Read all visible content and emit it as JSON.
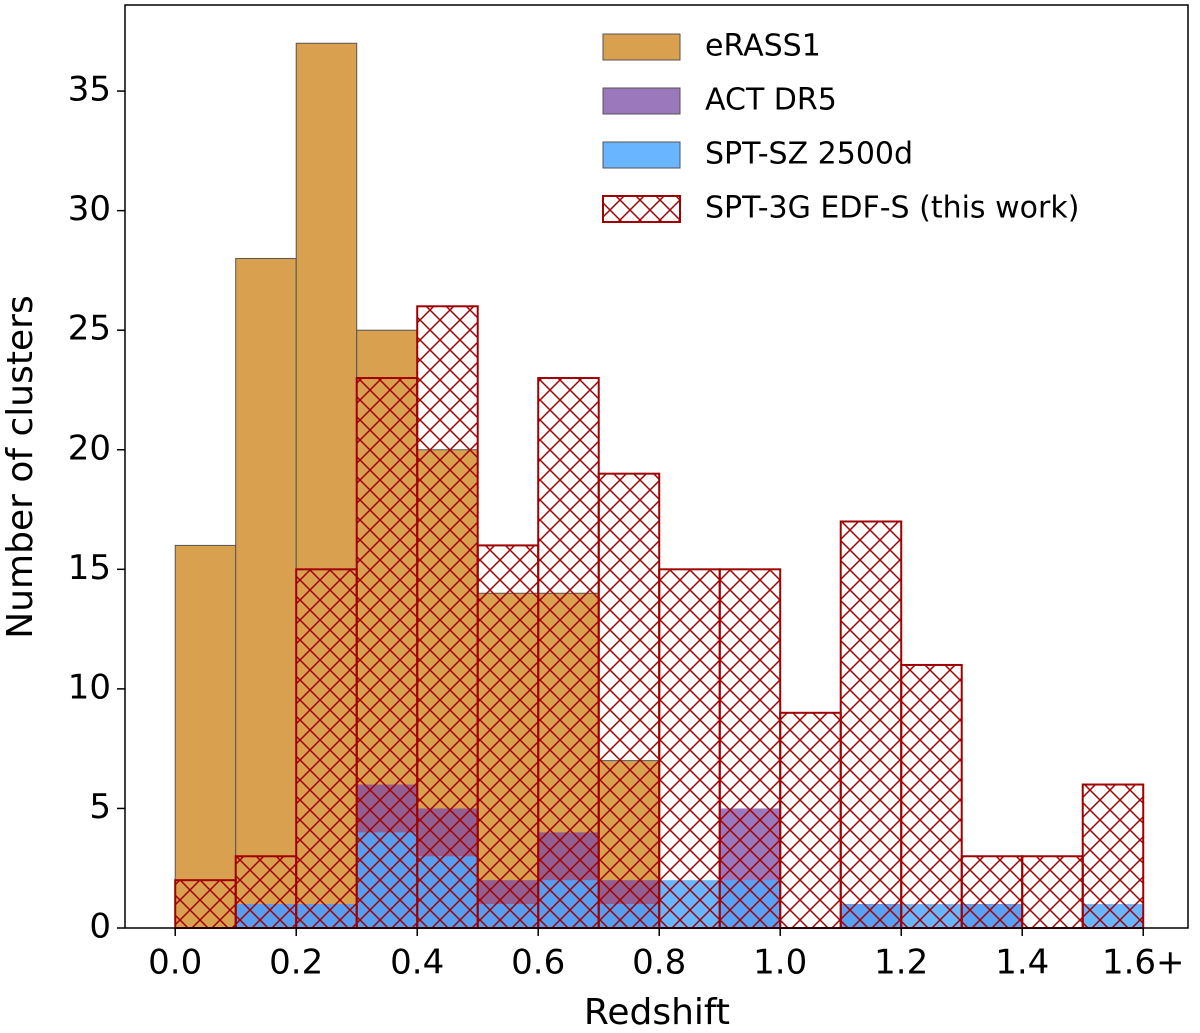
{
  "chart_data": {
    "type": "histogram",
    "xlabel": "Redshift",
    "ylabel": "Number of clusters",
    "bins": [
      0.0,
      0.1,
      0.2,
      0.3,
      0.4,
      0.5,
      0.6,
      0.7,
      0.8,
      0.9,
      1.0,
      1.1,
      1.2,
      1.3,
      1.4,
      1.5,
      1.6
    ],
    "series": [
      {
        "name": "eRASS1",
        "color": "#d9a050",
        "alpha": 1,
        "values": [
          16,
          28,
          37,
          25,
          20,
          14,
          14,
          7,
          0,
          0,
          0,
          0,
          0,
          0,
          0,
          0
        ]
      },
      {
        "name": "ACT DR5",
        "color": "#7a4aa6",
        "alpha": 0.75,
        "values": [
          0,
          1,
          1,
          6,
          5,
          2,
          4,
          2,
          0,
          5,
          0,
          1,
          0,
          1,
          0,
          0
        ]
      },
      {
        "name": "SPT-SZ 2500d",
        "color": "#4fa8ff",
        "alpha": 0.85,
        "values": [
          0,
          1,
          1,
          4,
          3,
          1,
          2,
          1,
          2,
          2,
          0,
          1,
          1,
          1,
          0,
          1
        ]
      },
      {
        "name": "SPT-3G EDF-S (this work)",
        "color": "#a00000",
        "hatch": true,
        "values": [
          2,
          3,
          15,
          23,
          26,
          16,
          23,
          19,
          15,
          15,
          9,
          17,
          11,
          3,
          3,
          6
        ]
      }
    ],
    "xlim": [
      -0.083,
      1.674
    ],
    "ylim": [
      0,
      38.6
    ],
    "xticks": [
      {
        "value": 0,
        "label": "0.0"
      },
      0.2,
      0.4,
      0.6,
      0.8,
      {
        "value": 1,
        "label": "1.0"
      },
      1.2,
      1.4,
      {
        "value": 1.6,
        "label": "1.6+"
      }
    ],
    "yticks": [
      0,
      5,
      10,
      15,
      20,
      25,
      30,
      35
    ],
    "legend": "upper right"
  }
}
